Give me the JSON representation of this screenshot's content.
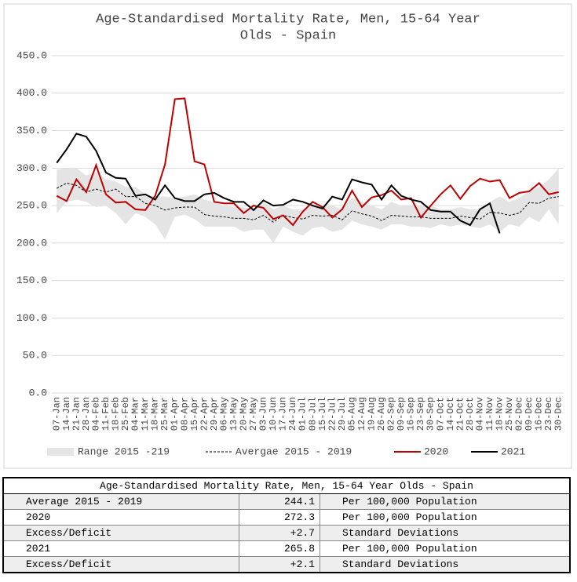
{
  "chart_data": {
    "type": "line",
    "title": "Age-Standardised Mortality Rate, Men, 15-64 Year Olds - Spain",
    "categories": [
      "07-Jan",
      "14-Jan",
      "21-Jan",
      "28-Jan",
      "04-Feb",
      "11-Feb",
      "18-Feb",
      "25-Feb",
      "04-Mar",
      "11-Mar",
      "18-Mar",
      "25-Mar",
      "01-Apr",
      "08-Apr",
      "15-Apr",
      "22-Apr",
      "29-Apr",
      "06-May",
      "13-May",
      "20-May",
      "27-May",
      "03-Jun",
      "10-Jun",
      "17-Jun",
      "24-Jun",
      "01-Jul",
      "08-Jul",
      "15-Jul",
      "22-Jul",
      "29-Jul",
      "05-Aug",
      "12-Aug",
      "19-Aug",
      "26-Aug",
      "02-Sep",
      "09-Sep",
      "16-Sep",
      "23-Sep",
      "30-Sep",
      "07-Oct",
      "14-Oct",
      "21-Oct",
      "28-Oct",
      "04-Nov",
      "11-Nov",
      "18-Nov",
      "25-Nov",
      "02-Dec",
      "09-Dec",
      "16-Dec",
      "23-Dec",
      "30-Dec"
    ],
    "range": {
      "name": "Range 2015 -219",
      "color": "#e4e4e4",
      "high": [
        298,
        300,
        300,
        290,
        295,
        285,
        282,
        275,
        275,
        265,
        262,
        262,
        260,
        262,
        265,
        258,
        255,
        250,
        248,
        248,
        245,
        255,
        245,
        250,
        245,
        245,
        250,
        248,
        250,
        245,
        260,
        255,
        250,
        245,
        255,
        250,
        250,
        250,
        250,
        245,
        245,
        248,
        245,
        245,
        255,
        262,
        255,
        260,
        270,
        275,
        285,
        300
      ],
      "low": [
        240,
        255,
        258,
        255,
        248,
        250,
        240,
        225,
        240,
        235,
        225,
        205,
        235,
        238,
        232,
        222,
        222,
        222,
        222,
        215,
        218,
        218,
        200,
        222,
        215,
        210,
        220,
        222,
        215,
        218,
        230,
        225,
        222,
        218,
        225,
        225,
        222,
        222,
        220,
        225,
        222,
        225,
        222,
        220,
        225,
        215,
        225,
        222,
        235,
        228,
        245,
        225
      ]
    },
    "series": [
      {
        "name": "Avergae 2015 - 2019",
        "color": "#000000",
        "dashed": true,
        "values": [
          273,
          280,
          277,
          268,
          272,
          268,
          272,
          262,
          262,
          253,
          250,
          244,
          247,
          248,
          248,
          238,
          236,
          235,
          233,
          233,
          231,
          237,
          228,
          237,
          234,
          232,
          237,
          236,
          237,
          231,
          243,
          239,
          236,
          230,
          237,
          236,
          235,
          235,
          233,
          233,
          233,
          236,
          234,
          232,
          241,
          240,
          237,
          240,
          254,
          253,
          260,
          262
        ]
      },
      {
        "name": "2020",
        "color": "#c00000",
        "values": [
          263,
          256,
          285,
          268,
          304,
          265,
          254,
          255,
          245,
          244,
          263,
          305,
          392,
          393,
          309,
          305,
          255,
          253,
          253,
          240,
          250,
          247,
          232,
          237,
          224,
          242,
          255,
          248,
          234,
          245,
          270,
          248,
          261,
          264,
          270,
          258,
          260,
          234,
          250,
          265,
          277,
          259,
          276,
          286,
          282,
          284,
          260,
          267,
          269,
          280,
          265,
          268
        ]
      },
      {
        "name": "2021",
        "color": "#000000",
        "values": [
          307,
          325,
          346,
          342,
          323,
          294,
          287,
          286,
          263,
          265,
          258,
          277,
          260,
          256,
          256,
          265,
          267,
          260,
          255,
          255,
          244,
          257,
          250,
          251,
          258,
          255,
          250,
          246,
          262,
          258,
          285,
          281,
          278,
          258,
          277,
          263,
          258,
          255,
          244,
          242,
          242,
          230,
          224,
          245,
          253,
          213,
          null,
          null,
          null,
          null,
          null,
          null
        ]
      }
    ],
    "ylim": [
      0,
      450
    ],
    "yticks": [
      {
        "value": 0,
        "label": "0.0"
      },
      {
        "value": 50,
        "label": "50.0"
      },
      {
        "value": 100,
        "label": "100.0"
      },
      {
        "value": 150,
        "label": "150.0"
      },
      {
        "value": 200,
        "label": "200.0"
      },
      {
        "value": 250,
        "label": "250.0"
      },
      {
        "value": 300,
        "label": "300.0"
      },
      {
        "value": 350,
        "label": "350.0"
      },
      {
        "value": 400,
        "label": "400.0"
      },
      {
        "value": 450,
        "label": "450.0"
      }
    ],
    "grid": true
  },
  "table": {
    "title": "Age-Standardised Mortality Rate, Men, 15-64 Year Olds - Spain",
    "rows": [
      [
        "Average 2015 - 2019",
        "244.1",
        "Per 100,000 Population"
      ],
      [
        "2020",
        "272.3",
        "Per 100,000 Population"
      ],
      [
        "Excess/Deficit",
        "+2.7",
        "Standard Deviations"
      ],
      [
        "2021",
        "265.8",
        "Per 100,000 Population"
      ],
      [
        "Excess/Deficit",
        "+2.1",
        "Standard Deviations"
      ]
    ]
  }
}
